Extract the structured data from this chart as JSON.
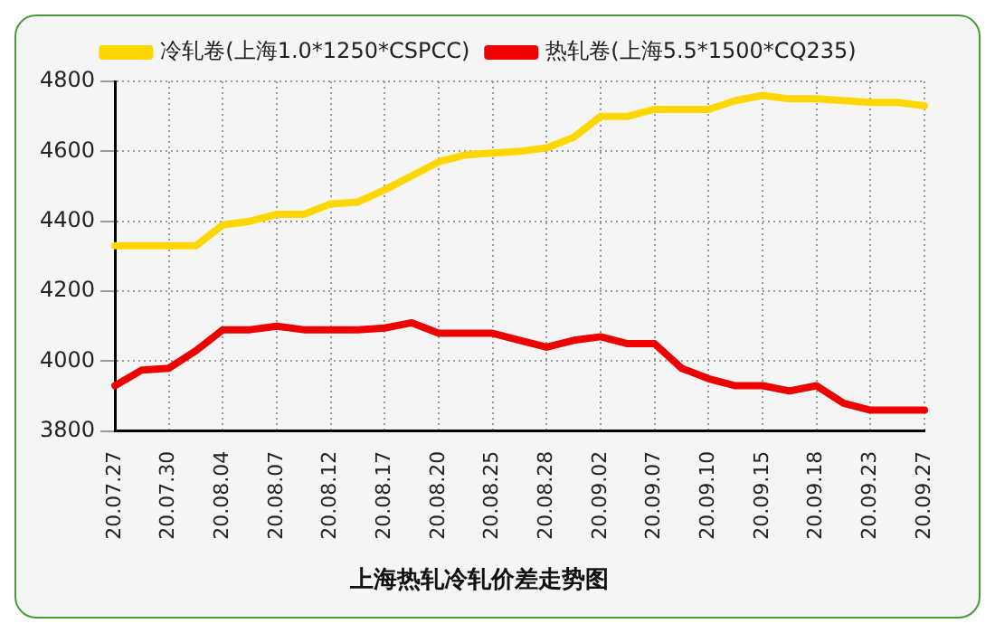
{
  "chart_data": {
    "type": "line",
    "title": "上海热轧冷轧价差走势图",
    "categories": [
      "20.07.27",
      null,
      "20.07.30",
      null,
      "20.08.04",
      null,
      "20.08.07",
      null,
      "20.08.12",
      null,
      "20.08.17",
      null,
      "20.08.20",
      null,
      "20.08.25",
      null,
      "20.08.28",
      null,
      "20.09.02",
      null,
      "20.09.07",
      null,
      "20.09.10",
      null,
      "20.09.15",
      null,
      "20.09.18",
      null,
      "20.09.23",
      null,
      "20.09.27"
    ],
    "series": [
      {
        "name": "冷轧卷(上海1.0*1250*CSPCC)",
        "color": "#ffd700",
        "values": [
          4330,
          4330,
          4330,
          4330,
          4390,
          4400,
          4420,
          4420,
          4450,
          4455,
          4490,
          4530,
          4570,
          4590,
          4595,
          4600,
          4610,
          4640,
          4700,
          4700,
          4720,
          4720,
          4720,
          4745,
          4760,
          4750,
          4750,
          4745,
          4740,
          4740,
          4730
        ]
      },
      {
        "name": "热轧卷(上海5.5*1500*CQ235)",
        "color": "#ee0000",
        "values": [
          3930,
          3975,
          3980,
          4030,
          4090,
          4090,
          4100,
          4090,
          4090,
          4090,
          4095,
          4110,
          4080,
          4080,
          4080,
          4060,
          4040,
          4060,
          4070,
          4050,
          4050,
          3980,
          3950,
          3930,
          3930,
          3915,
          3930,
          3880,
          3860,
          3860,
          3860
        ]
      }
    ],
    "ylim": [
      3800,
      4800
    ],
    "yticks": [
      3800,
      4000,
      4200,
      4400,
      4600,
      4800
    ],
    "grid": true,
    "legend": "top",
    "marker": "none",
    "line_style": "solid"
  }
}
